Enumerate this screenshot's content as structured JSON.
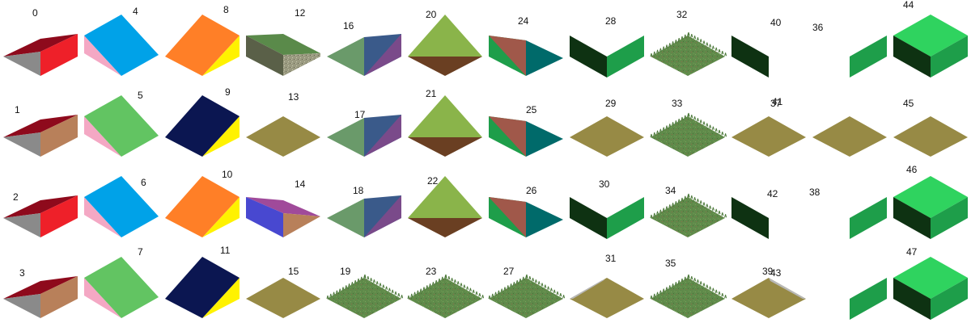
{
  "tiles": [
    {
      "id": "0",
      "type": "roof_a",
      "colors": {
        "top": "#8e0a1c",
        "left": "#8a8a8a",
        "right": "#ee2029"
      }
    },
    {
      "id": "1",
      "type": "roof_a",
      "colors": {
        "top": "#8e0a1c",
        "left": "#8a8a8a",
        "right": "#b8805a"
      }
    },
    {
      "id": "2",
      "type": "roof_a",
      "colors": {
        "top": "#8e0a1c",
        "left": "#8a8a8a",
        "right": "#ee2029"
      }
    },
    {
      "id": "3",
      "type": "roof_a",
      "colors": {
        "top": "#8e0a1c",
        "left": "#8a8a8a",
        "right": "#b8805a"
      }
    },
    {
      "id": "4",
      "type": "ramp",
      "colors": {
        "top": "#00a2e8",
        "side": "#f4a8c4"
      }
    },
    {
      "id": "5",
      "type": "ramp",
      "colors": {
        "top": "#62c462",
        "side": "#f4a8c4"
      }
    },
    {
      "id": "6",
      "type": "ramp",
      "colors": {
        "top": "#00a2e8",
        "side": "#f4a8c4"
      }
    },
    {
      "id": "7",
      "type": "ramp",
      "colors": {
        "top": "#62c462",
        "side": "#f4a8c4"
      }
    },
    {
      "id": "8",
      "type": "ramp_r",
      "colors": {
        "top": "#ff7f27",
        "side": "#fff200"
      }
    },
    {
      "id": "9",
      "type": "ramp_r",
      "colors": {
        "top": "#0b1651",
        "side": "#fff200"
      }
    },
    {
      "id": "10",
      "type": "ramp_r",
      "colors": {
        "top": "#ff7f27",
        "side": "#fff200"
      }
    },
    {
      "id": "11",
      "type": "ramp_r",
      "colors": {
        "top": "#0b1651",
        "side": "#fff200"
      }
    },
    {
      "id": "12",
      "type": "slope_gravel",
      "colors": {
        "top": "#5a8a4a",
        "left": "#5a6048",
        "right": "#9a9a80"
      }
    },
    {
      "id": "13",
      "type": "flat",
      "colors": {
        "top": "#978a45"
      }
    },
    {
      "id": "14",
      "type": "roof_c",
      "colors": {
        "top": "#a04a9a",
        "left": "#4848d0",
        "right": "#b8805a"
      }
    },
    {
      "id": "15",
      "type": "flat",
      "colors": {
        "top": "#978a45"
      }
    },
    {
      "id": "16",
      "type": "prism",
      "colors": {
        "left": "#6a9a6a",
        "right": "#3a5a8a",
        "accent": "#7a4a8a"
      }
    },
    {
      "id": "17",
      "type": "prism",
      "colors": {
        "left": "#6a9a6a",
        "right": "#3a5a8a",
        "accent": "#7a4a8a"
      }
    },
    {
      "id": "18",
      "type": "prism",
      "colors": {
        "left": "#6a9a6a",
        "right": "#3a5a8a",
        "accent": "#7a4a8a"
      }
    },
    {
      "id": "19",
      "type": "grass",
      "colors": {
        "top": "#5f8a4a"
      }
    },
    {
      "id": "20",
      "type": "pyramid",
      "colors": {
        "top": "#8ab44a",
        "bottom": "#6a3f22"
      }
    },
    {
      "id": "21",
      "type": "pyramid",
      "colors": {
        "top": "#8ab44a",
        "bottom": "#6a3f22"
      }
    },
    {
      "id": "22",
      "type": "pyramid",
      "colors": {
        "top": "#8ab44a",
        "bottom": "#6a3f22"
      }
    },
    {
      "id": "23",
      "type": "grass",
      "colors": {
        "top": "#5f8a4a"
      }
    },
    {
      "id": "24",
      "type": "split",
      "colors": {
        "a": "#a0584a",
        "b": "#1e9e4a",
        "c": "#006a6a"
      }
    },
    {
      "id": "25",
      "type": "split",
      "colors": {
        "a": "#a0584a",
        "b": "#1e9e4a",
        "c": "#006a6a"
      }
    },
    {
      "id": "26",
      "type": "split",
      "colors": {
        "a": "#a0584a",
        "b": "#1e9e4a",
        "c": "#006a6a"
      }
    },
    {
      "id": "27",
      "type": "grass",
      "colors": {
        "top": "#5f8a4a"
      }
    },
    {
      "id": "28",
      "type": "walls",
      "colors": {
        "left": "#0e3212",
        "right": "#1e9e4a"
      }
    },
    {
      "id": "29",
      "type": "flat",
      "colors": {
        "top": "#978a45"
      }
    },
    {
      "id": "30",
      "type": "walls",
      "colors": {
        "left": "#0e3212",
        "right": "#1e9e4a"
      }
    },
    {
      "id": "31",
      "type": "flat_edge_left",
      "colors": {
        "top": "#978a45",
        "edge": "#b8b8b8"
      }
    },
    {
      "id": "32",
      "type": "grass",
      "colors": {
        "top": "#5f8a4a"
      }
    },
    {
      "id": "33",
      "type": "grass",
      "colors": {
        "top": "#5f8a4a"
      }
    },
    {
      "id": "34",
      "type": "grass",
      "colors": {
        "top": "#5f8a4a"
      }
    },
    {
      "id": "35",
      "type": "grass",
      "colors": {
        "top": "#5f8a4a"
      }
    },
    {
      "id": "36",
      "type": "wall_left",
      "colors": {
        "left": "#0e3212"
      }
    },
    {
      "id": "37",
      "type": "flat",
      "colors": {
        "top": "#978a45"
      }
    },
    {
      "id": "38",
      "type": "wall_left",
      "colors": {
        "left": "#0e3212"
      }
    },
    {
      "id": "39",
      "type": "flat_edge_right",
      "colors": {
        "top": "#978a45",
        "edge": "#b8b8b8"
      }
    },
    {
      "id": "40",
      "type": "wall_right",
      "colors": {
        "right": "#1e9e4a"
      }
    },
    {
      "id": "41",
      "type": "flat",
      "colors": {
        "top": "#978a45"
      }
    },
    {
      "id": "42",
      "type": "wall_right",
      "colors": {
        "right": "#1e9e4a"
      }
    },
    {
      "id": "43",
      "type": "wall_right",
      "colors": {
        "right": "#1e9e4a"
      }
    },
    {
      "id": "44",
      "type": "cube",
      "colors": {
        "top": "#2fd35f",
        "left": "#0e3212",
        "right": "#1e9e4a"
      }
    },
    {
      "id": "45",
      "type": "flat",
      "colors": {
        "top": "#978a45"
      }
    },
    {
      "id": "46",
      "type": "cube",
      "colors": {
        "top": "#2fd35f",
        "left": "#0e3212",
        "right": "#1e9e4a"
      }
    },
    {
      "id": "47",
      "type": "cube",
      "colors": {
        "top": "#2fd35f",
        "left": "#0e3212",
        "right": "#1e9e4a"
      }
    }
  ]
}
